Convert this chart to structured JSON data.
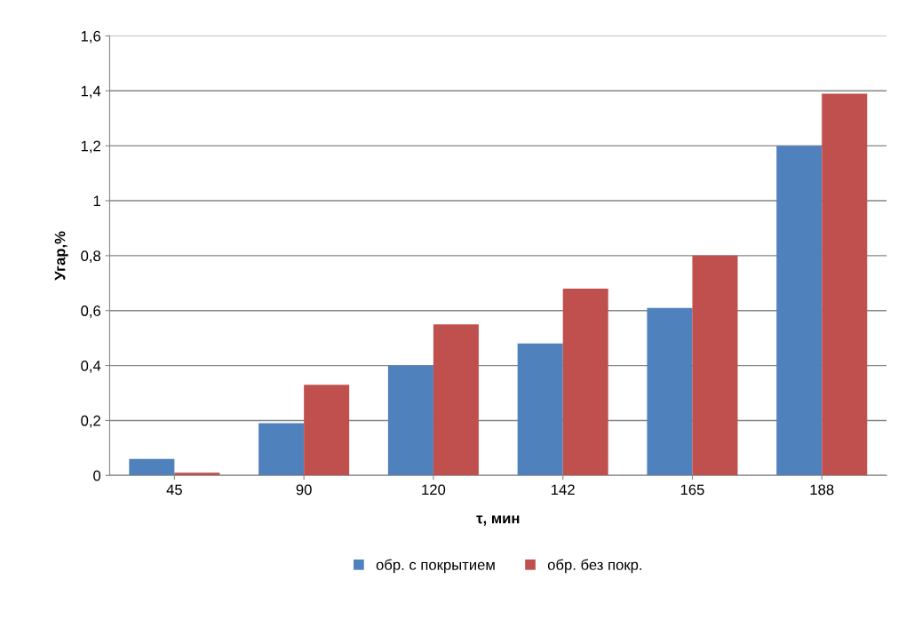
{
  "chart_data": {
    "type": "bar",
    "xlabel": "τ, мин",
    "ylabel": "Угар,%",
    "categories": [
      "45",
      "90",
      "120",
      "142",
      "165",
      "188"
    ],
    "series": [
      {
        "name": "обр. с покрытием",
        "color": "#4f81bd",
        "values": [
          0.06,
          0.19,
          0.4,
          0.48,
          0.61,
          1.2
        ]
      },
      {
        "name": "обр. без покр.",
        "color": "#c0504d",
        "values": [
          0.01,
          0.33,
          0.55,
          0.68,
          0.8,
          1.39
        ]
      }
    ],
    "ylim": [
      0,
      1.6
    ],
    "yticks": [
      {
        "value": 0,
        "label": "0"
      },
      {
        "value": 0.2,
        "label": "0,2"
      },
      {
        "value": 0.4,
        "label": "0,4"
      },
      {
        "value": 0.6,
        "label": "0,6"
      },
      {
        "value": 0.8,
        "label": "0,8"
      },
      {
        "value": 1,
        "label": "1"
      },
      {
        "value": 1.2,
        "label": "1,2"
      },
      {
        "value": 1.4,
        "label": "1,4"
      },
      {
        "value": 1.6,
        "label": "1,6"
      }
    ],
    "grid": "y",
    "legend": "bottom"
  }
}
